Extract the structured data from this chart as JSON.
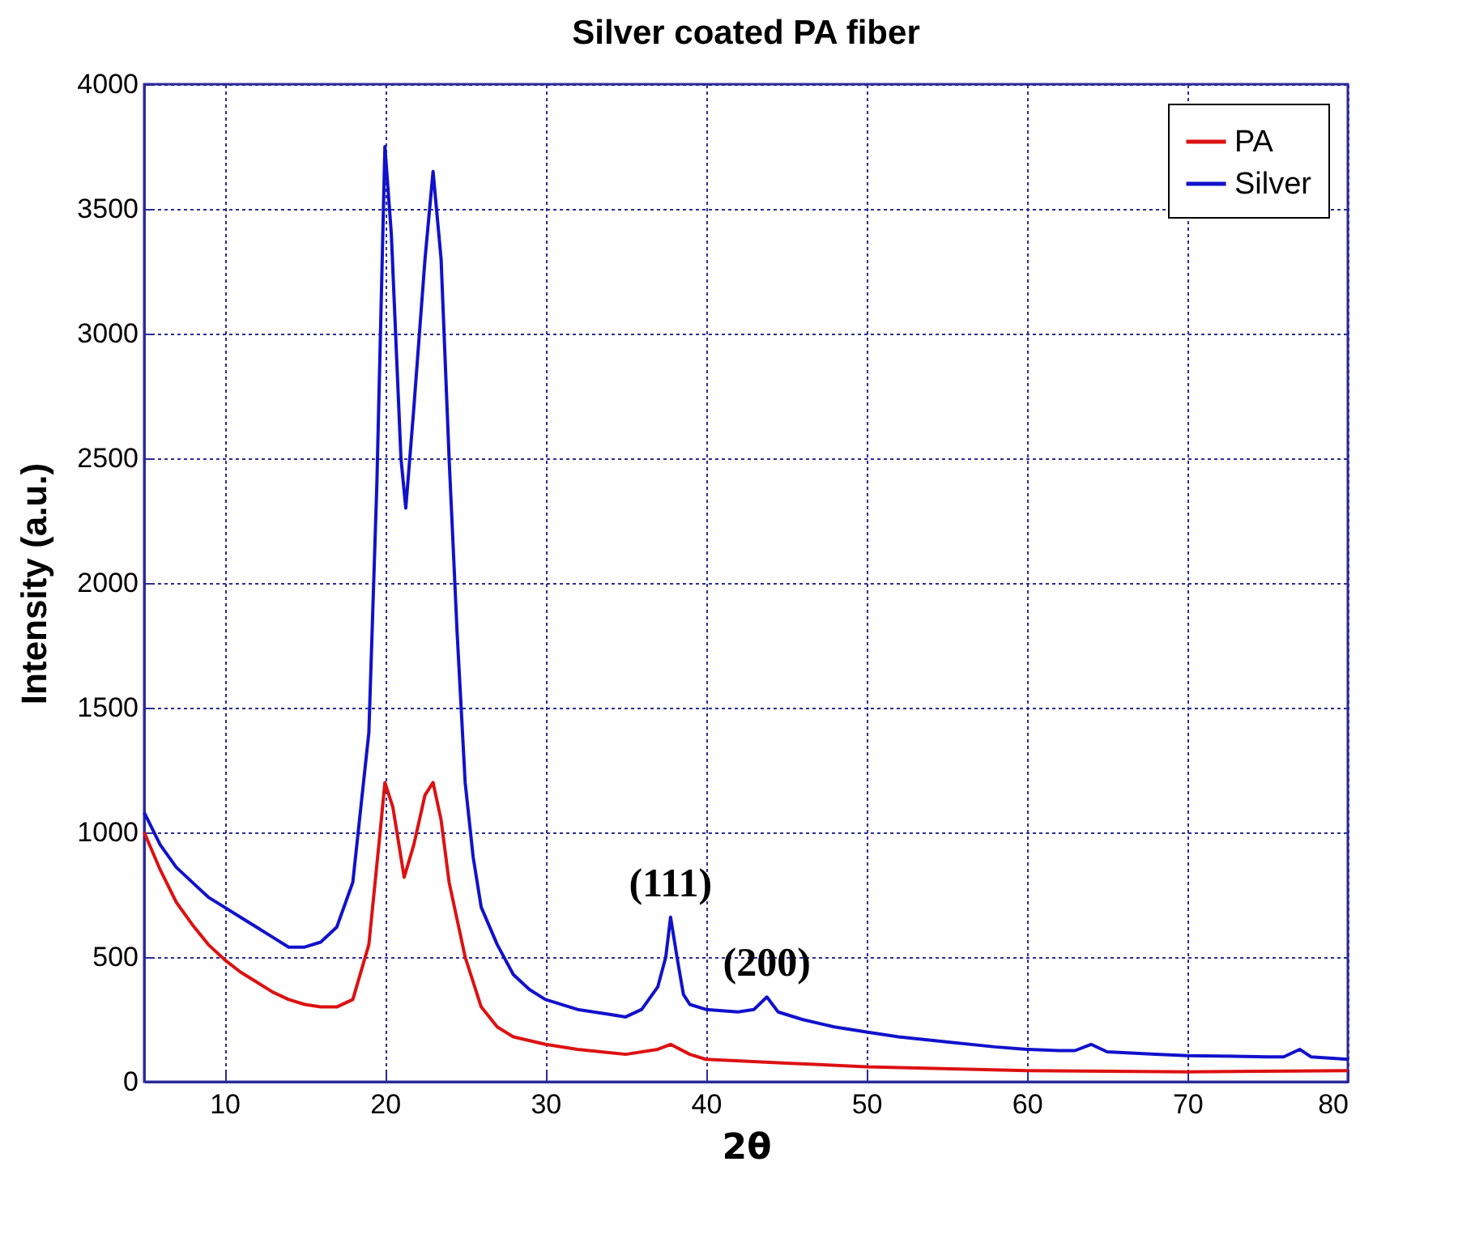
{
  "chart_data": {
    "type": "line",
    "title": "Silver coated PA fiber",
    "xlabel": "2θ",
    "ylabel": "Intensity (a.u.)",
    "xlim": [
      5,
      80
    ],
    "xticks": [
      10,
      20,
      30,
      40,
      50,
      60,
      70,
      80
    ],
    "ylim": [
      0,
      4000
    ],
    "yticks": [
      0,
      500,
      1000,
      1500,
      2000,
      2500,
      3000,
      3500,
      4000
    ],
    "grid": true,
    "legend": "top right",
    "line_style": "solid",
    "annotations": [
      {
        "text": "(111)",
        "x": 37.8,
        "y": 660
      },
      {
        "text": "(200)",
        "x": 43.8,
        "y": 340
      }
    ],
    "series": [
      {
        "name": "PA",
        "color": "#dd1111",
        "x": [
          5,
          6,
          7,
          8,
          9,
          10,
          11,
          12,
          13,
          14,
          15,
          16,
          17,
          18,
          19,
          19.7,
          20,
          20.5,
          21.2,
          21.8,
          22.5,
          23,
          23.5,
          24,
          25,
          26,
          27,
          28,
          30,
          32,
          35,
          37,
          37.8,
          39,
          40,
          45,
          50,
          60,
          70,
          80
        ],
        "values": [
          1000,
          850,
          720,
          630,
          550,
          490,
          440,
          400,
          360,
          330,
          310,
          300,
          300,
          330,
          550,
          1000,
          1200,
          1100,
          820,
          950,
          1150,
          1200,
          1050,
          800,
          500,
          300,
          220,
          180,
          150,
          130,
          110,
          130,
          150,
          110,
          90,
          75,
          60,
          45,
          40,
          45
        ]
      },
      {
        "name": "Silver",
        "color": "#1111cc",
        "x": [
          5,
          6,
          7,
          8,
          9,
          10,
          11,
          12,
          13,
          14,
          15,
          16,
          17,
          18,
          19,
          19.5,
          20,
          20.4,
          21,
          21.3,
          21.8,
          22.5,
          23,
          23.5,
          24,
          24.5,
          25,
          25.5,
          26,
          27,
          28,
          29,
          30,
          32,
          34,
          35,
          36,
          37,
          37.5,
          37.8,
          38.2,
          38.6,
          39,
          40,
          42,
          43,
          43.8,
          44.5,
          46,
          48,
          50,
          52,
          55,
          58,
          60,
          62,
          63,
          64,
          65,
          68,
          70,
          75,
          76,
          77,
          77.7,
          80
        ],
        "values": [
          1080,
          950,
          860,
          800,
          740,
          700,
          660,
          620,
          580,
          540,
          540,
          560,
          620,
          800,
          1400,
          2400,
          3750,
          3400,
          2500,
          2300,
          2700,
          3300,
          3650,
          3300,
          2500,
          1800,
          1200,
          900,
          700,
          550,
          430,
          370,
          330,
          290,
          270,
          260,
          290,
          380,
          500,
          660,
          500,
          350,
          310,
          290,
          280,
          290,
          340,
          280,
          250,
          220,
          200,
          180,
          160,
          140,
          130,
          125,
          125,
          150,
          120,
          110,
          105,
          100,
          100,
          130,
          100,
          90
        ]
      }
    ]
  }
}
